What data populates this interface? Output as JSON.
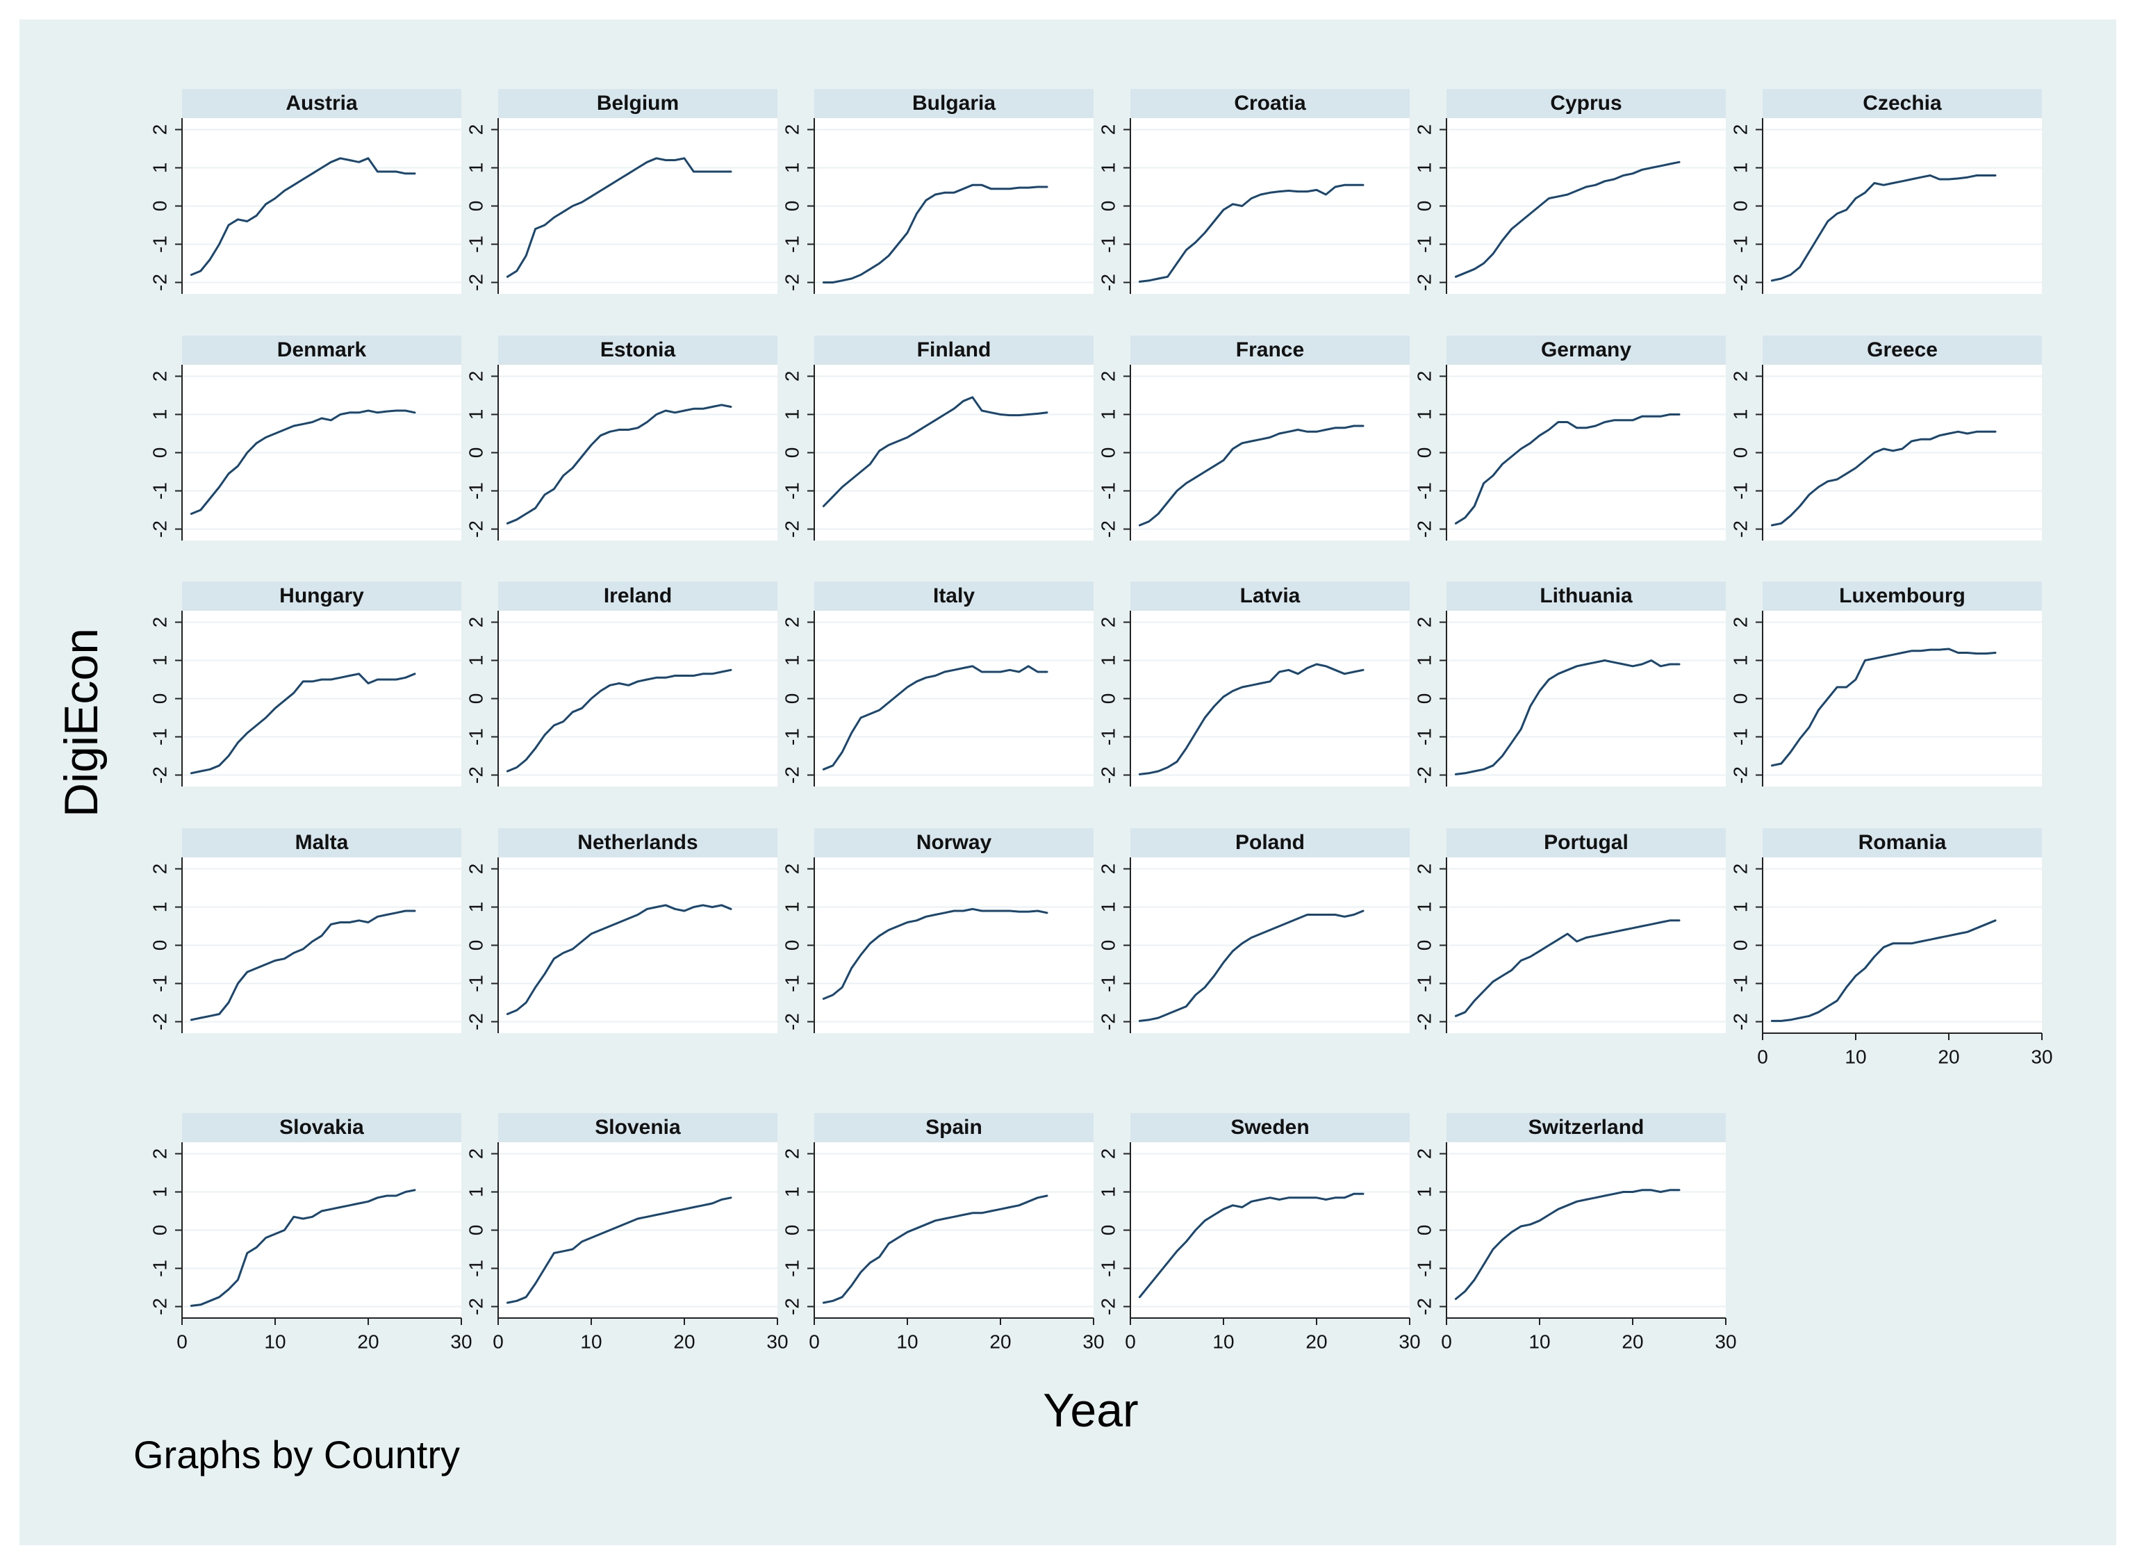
{
  "chart_data": {
    "type": "line",
    "xlabel": "Year",
    "ylabel": "DigiEcon",
    "note": "Graphs by Country",
    "xlim": [
      0,
      30
    ],
    "ylim": [
      -2.3,
      2.3
    ],
    "xticks": [
      0,
      10,
      20,
      30
    ],
    "yticks": [
      2,
      1,
      0,
      -1,
      -2
    ],
    "x": [
      1,
      2,
      3,
      4,
      5,
      6,
      7,
      8,
      9,
      10,
      11,
      12,
      13,
      14,
      15,
      16,
      17,
      18,
      19,
      20,
      21,
      22,
      23,
      24,
      25
    ],
    "series_color": "#1a476f",
    "series": [
      {
        "name": "Austria",
        "values": [
          -1.8,
          -1.7,
          -1.4,
          -1.0,
          -0.5,
          -0.35,
          -0.4,
          -0.25,
          0.05,
          0.2,
          0.4,
          0.55,
          0.7,
          0.85,
          1.0,
          1.15,
          1.25,
          1.2,
          1.15,
          1.25,
          0.9,
          0.9,
          0.9,
          0.85,
          0.85
        ]
      },
      {
        "name": "Belgium",
        "values": [
          -1.85,
          -1.7,
          -1.3,
          -0.6,
          -0.5,
          -0.3,
          -0.15,
          0.0,
          0.1,
          0.25,
          0.4,
          0.55,
          0.7,
          0.85,
          1.0,
          1.15,
          1.25,
          1.2,
          1.2,
          1.25,
          0.9,
          0.9,
          0.9,
          0.9,
          0.9
        ]
      },
      {
        "name": "Bulgaria",
        "values": [
          -2.0,
          -2.0,
          -1.95,
          -1.9,
          -1.8,
          -1.65,
          -1.5,
          -1.3,
          -1.0,
          -0.7,
          -0.2,
          0.15,
          0.3,
          0.35,
          0.35,
          0.45,
          0.55,
          0.55,
          0.45,
          0.45,
          0.45,
          0.48,
          0.48,
          0.5,
          0.5
        ]
      },
      {
        "name": "Croatia",
        "values": [
          -1.98,
          -1.95,
          -1.9,
          -1.85,
          -1.5,
          -1.15,
          -0.95,
          -0.7,
          -0.4,
          -0.1,
          0.05,
          0.0,
          0.2,
          0.3,
          0.35,
          0.38,
          0.4,
          0.38,
          0.38,
          0.42,
          0.3,
          0.5,
          0.55,
          0.55,
          0.55
        ]
      },
      {
        "name": "Cyprus",
        "values": [
          -1.85,
          -1.75,
          -1.65,
          -1.5,
          -1.25,
          -0.9,
          -0.6,
          -0.4,
          -0.2,
          0.0,
          0.2,
          0.25,
          0.3,
          0.4,
          0.5,
          0.55,
          0.65,
          0.7,
          0.8,
          0.85,
          0.95,
          1.0,
          1.05,
          1.1,
          1.15
        ]
      },
      {
        "name": "Czechia",
        "values": [
          -1.95,
          -1.9,
          -1.8,
          -1.6,
          -1.2,
          -0.8,
          -0.4,
          -0.2,
          -0.1,
          0.2,
          0.35,
          0.6,
          0.55,
          0.6,
          0.65,
          0.7,
          0.75,
          0.8,
          0.7,
          0.7,
          0.72,
          0.75,
          0.8,
          0.8,
          0.8
        ]
      },
      {
        "name": "Denmark",
        "values": [
          -1.6,
          -1.5,
          -1.2,
          -0.9,
          -0.55,
          -0.35,
          0.0,
          0.25,
          0.4,
          0.5,
          0.6,
          0.7,
          0.75,
          0.8,
          0.9,
          0.85,
          1.0,
          1.05,
          1.05,
          1.1,
          1.05,
          1.08,
          1.1,
          1.1,
          1.05
        ]
      },
      {
        "name": "Estonia",
        "values": [
          -1.85,
          -1.75,
          -1.6,
          -1.45,
          -1.1,
          -0.95,
          -0.6,
          -0.4,
          -0.1,
          0.2,
          0.45,
          0.55,
          0.6,
          0.6,
          0.65,
          0.8,
          1.0,
          1.1,
          1.05,
          1.1,
          1.15,
          1.15,
          1.2,
          1.25,
          1.2
        ]
      },
      {
        "name": "Finland",
        "values": [
          -1.4,
          -1.15,
          -0.9,
          -0.7,
          -0.5,
          -0.3,
          0.05,
          0.2,
          0.3,
          0.4,
          0.55,
          0.7,
          0.85,
          1.0,
          1.15,
          1.35,
          1.45,
          1.1,
          1.05,
          1.0,
          0.98,
          0.98,
          1.0,
          1.02,
          1.05
        ]
      },
      {
        "name": "France",
        "values": [
          -1.9,
          -1.8,
          -1.6,
          -1.3,
          -1.0,
          -0.8,
          -0.65,
          -0.5,
          -0.35,
          -0.2,
          0.1,
          0.25,
          0.3,
          0.35,
          0.4,
          0.5,
          0.55,
          0.6,
          0.55,
          0.55,
          0.6,
          0.65,
          0.65,
          0.7,
          0.7
        ]
      },
      {
        "name": "Germany",
        "values": [
          -1.85,
          -1.7,
          -1.4,
          -0.8,
          -0.6,
          -0.3,
          -0.1,
          0.1,
          0.25,
          0.45,
          0.6,
          0.8,
          0.8,
          0.65,
          0.65,
          0.7,
          0.8,
          0.85,
          0.85,
          0.85,
          0.95,
          0.95,
          0.95,
          1.0,
          1.0
        ]
      },
      {
        "name": "Greece",
        "values": [
          -1.9,
          -1.85,
          -1.65,
          -1.4,
          -1.1,
          -0.9,
          -0.75,
          -0.7,
          -0.55,
          -0.4,
          -0.2,
          0.0,
          0.1,
          0.05,
          0.1,
          0.3,
          0.35,
          0.35,
          0.45,
          0.5,
          0.55,
          0.5,
          0.55,
          0.55,
          0.55
        ]
      },
      {
        "name": "Hungary",
        "values": [
          -1.95,
          -1.9,
          -1.85,
          -1.75,
          -1.5,
          -1.15,
          -0.9,
          -0.7,
          -0.5,
          -0.25,
          -0.05,
          0.15,
          0.45,
          0.45,
          0.5,
          0.5,
          0.55,
          0.6,
          0.65,
          0.4,
          0.5,
          0.5,
          0.5,
          0.55,
          0.65
        ]
      },
      {
        "name": "Ireland",
        "values": [
          -1.9,
          -1.8,
          -1.6,
          -1.3,
          -0.95,
          -0.7,
          -0.6,
          -0.35,
          -0.25,
          0.0,
          0.2,
          0.35,
          0.4,
          0.35,
          0.45,
          0.5,
          0.55,
          0.55,
          0.6,
          0.6,
          0.6,
          0.65,
          0.65,
          0.7,
          0.75
        ]
      },
      {
        "name": "Italy",
        "values": [
          -1.85,
          -1.75,
          -1.4,
          -0.9,
          -0.5,
          -0.4,
          -0.3,
          -0.1,
          0.1,
          0.3,
          0.45,
          0.55,
          0.6,
          0.7,
          0.75,
          0.8,
          0.85,
          0.7,
          0.7,
          0.7,
          0.75,
          0.7,
          0.85,
          0.7,
          0.7
        ]
      },
      {
        "name": "Latvia",
        "values": [
          -1.98,
          -1.95,
          -1.9,
          -1.8,
          -1.65,
          -1.3,
          -0.9,
          -0.5,
          -0.2,
          0.05,
          0.2,
          0.3,
          0.35,
          0.4,
          0.45,
          0.7,
          0.75,
          0.65,
          0.8,
          0.9,
          0.85,
          0.75,
          0.65,
          0.7,
          0.75
        ]
      },
      {
        "name": "Lithuania",
        "values": [
          -1.98,
          -1.95,
          -1.9,
          -1.85,
          -1.75,
          -1.5,
          -1.15,
          -0.8,
          -0.2,
          0.2,
          0.5,
          0.65,
          0.75,
          0.85,
          0.9,
          0.95,
          1.0,
          0.95,
          0.9,
          0.85,
          0.9,
          1.0,
          0.85,
          0.9,
          0.9
        ]
      },
      {
        "name": "Luxembourg",
        "values": [
          -1.75,
          -1.7,
          -1.4,
          -1.05,
          -0.75,
          -0.3,
          0.0,
          0.3,
          0.3,
          0.5,
          1.0,
          1.05,
          1.1,
          1.15,
          1.2,
          1.25,
          1.25,
          1.28,
          1.28,
          1.3,
          1.2,
          1.2,
          1.18,
          1.18,
          1.2
        ]
      },
      {
        "name": "Malta",
        "values": [
          -1.95,
          -1.9,
          -1.85,
          -1.8,
          -1.5,
          -1.0,
          -0.7,
          -0.6,
          -0.5,
          -0.4,
          -0.35,
          -0.2,
          -0.1,
          0.1,
          0.25,
          0.55,
          0.6,
          0.6,
          0.65,
          0.6,
          0.75,
          0.8,
          0.85,
          0.9,
          0.9
        ]
      },
      {
        "name": "Netherlands",
        "values": [
          -1.8,
          -1.7,
          -1.5,
          -1.1,
          -0.75,
          -0.35,
          -0.2,
          -0.1,
          0.1,
          0.3,
          0.4,
          0.5,
          0.6,
          0.7,
          0.8,
          0.95,
          1.0,
          1.05,
          0.95,
          0.9,
          1.0,
          1.05,
          1.0,
          1.05,
          0.95
        ]
      },
      {
        "name": "Norway",
        "values": [
          -1.4,
          -1.3,
          -1.1,
          -0.6,
          -0.25,
          0.05,
          0.25,
          0.4,
          0.5,
          0.6,
          0.65,
          0.75,
          0.8,
          0.85,
          0.9,
          0.9,
          0.95,
          0.9,
          0.9,
          0.9,
          0.9,
          0.88,
          0.88,
          0.9,
          0.85
        ]
      },
      {
        "name": "Poland",
        "values": [
          -1.98,
          -1.95,
          -1.9,
          -1.8,
          -1.7,
          -1.6,
          -1.3,
          -1.1,
          -0.8,
          -0.45,
          -0.15,
          0.05,
          0.2,
          0.3,
          0.4,
          0.5,
          0.6,
          0.7,
          0.8,
          0.8,
          0.8,
          0.8,
          0.75,
          0.8,
          0.9
        ]
      },
      {
        "name": "Portugal",
        "values": [
          -1.85,
          -1.75,
          -1.45,
          -1.2,
          -0.95,
          -0.8,
          -0.65,
          -0.4,
          -0.3,
          -0.15,
          0.0,
          0.15,
          0.3,
          0.1,
          0.2,
          0.25,
          0.3,
          0.35,
          0.4,
          0.45,
          0.5,
          0.55,
          0.6,
          0.65,
          0.65
        ]
      },
      {
        "name": "Romania",
        "values": [
          -1.98,
          -1.98,
          -1.95,
          -1.9,
          -1.85,
          -1.75,
          -1.6,
          -1.45,
          -1.1,
          -0.8,
          -0.6,
          -0.3,
          -0.05,
          0.05,
          0.05,
          0.05,
          0.1,
          0.15,
          0.2,
          0.25,
          0.3,
          0.35,
          0.45,
          0.55,
          0.65
        ]
      },
      {
        "name": "Slovakia",
        "values": [
          -1.98,
          -1.95,
          -1.85,
          -1.75,
          -1.55,
          -1.3,
          -0.6,
          -0.45,
          -0.2,
          -0.1,
          0.0,
          0.35,
          0.3,
          0.35,
          0.5,
          0.55,
          0.6,
          0.65,
          0.7,
          0.75,
          0.85,
          0.9,
          0.9,
          1.0,
          1.05
        ]
      },
      {
        "name": "Slovenia",
        "values": [
          -1.9,
          -1.85,
          -1.75,
          -1.4,
          -1.0,
          -0.6,
          -0.55,
          -0.5,
          -0.3,
          -0.2,
          -0.1,
          0.0,
          0.1,
          0.2,
          0.3,
          0.35,
          0.4,
          0.45,
          0.5,
          0.55,
          0.6,
          0.65,
          0.7,
          0.8,
          0.85
        ]
      },
      {
        "name": "Spain",
        "values": [
          -1.9,
          -1.85,
          -1.75,
          -1.45,
          -1.1,
          -0.85,
          -0.7,
          -0.35,
          -0.2,
          -0.05,
          0.05,
          0.15,
          0.25,
          0.3,
          0.35,
          0.4,
          0.45,
          0.45,
          0.5,
          0.55,
          0.6,
          0.65,
          0.75,
          0.85,
          0.9
        ]
      },
      {
        "name": "Sweden",
        "values": [
          -1.75,
          -1.45,
          -1.15,
          -0.85,
          -0.55,
          -0.3,
          0.0,
          0.25,
          0.4,
          0.55,
          0.65,
          0.6,
          0.75,
          0.8,
          0.85,
          0.8,
          0.85,
          0.85,
          0.85,
          0.85,
          0.8,
          0.85,
          0.85,
          0.95,
          0.95
        ]
      },
      {
        "name": "Switzerland",
        "values": [
          -1.8,
          -1.6,
          -1.3,
          -0.9,
          -0.5,
          -0.25,
          -0.05,
          0.1,
          0.15,
          0.25,
          0.4,
          0.55,
          0.65,
          0.75,
          0.8,
          0.85,
          0.9,
          0.95,
          1.0,
          1.0,
          1.05,
          1.05,
          1.0,
          1.05,
          1.05
        ]
      }
    ]
  }
}
